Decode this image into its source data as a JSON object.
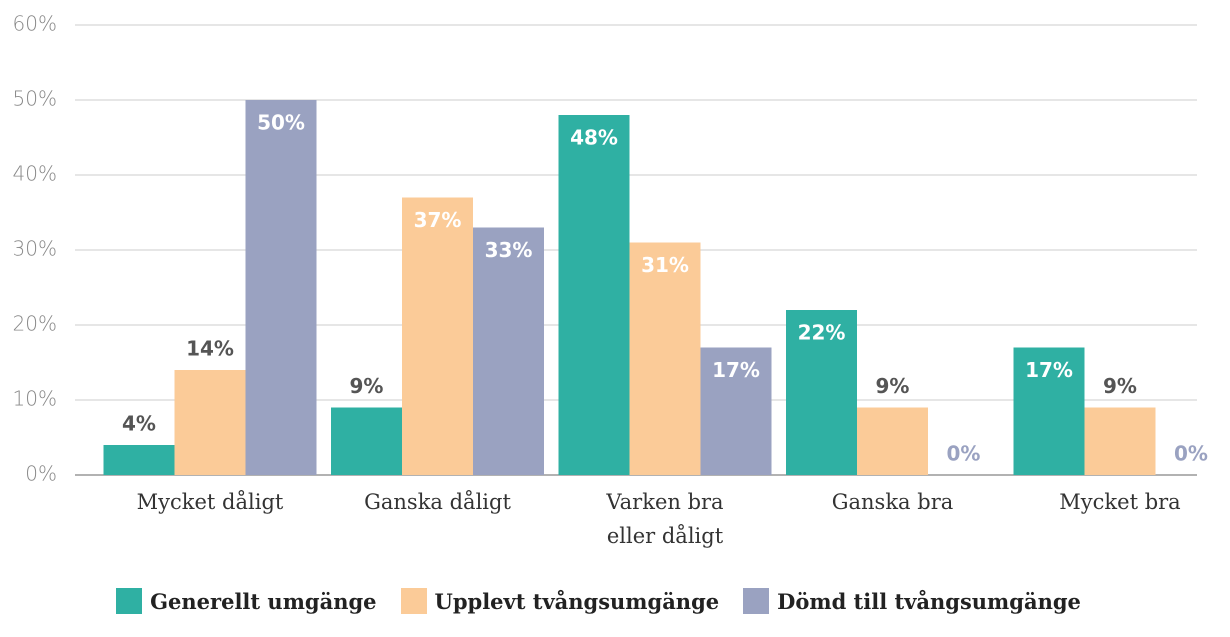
{
  "chart_data": {
    "type": "bar",
    "categories": [
      "Mycket dåligt",
      "Ganska dåligt",
      "Varken bra\neller dåligt",
      "Ganska bra",
      "Mycket bra"
    ],
    "series": [
      {
        "name": "Generellt umgänge",
        "color": "#2fb0a3",
        "values": [
          4,
          9,
          48,
          22,
          17
        ],
        "value_labels": [
          "4%",
          "9%",
          "48%",
          "22%",
          "17%"
        ]
      },
      {
        "name": "Upplevt tvångsumgänge",
        "color": "#fbcb98",
        "values": [
          14,
          37,
          31,
          9,
          9
        ],
        "value_labels": [
          "14%",
          "37%",
          "31%",
          "9%",
          "9%"
        ]
      },
      {
        "name": "Dömd till tvångsumgänge",
        "color": "#9aa2c1",
        "values": [
          50,
          33,
          17,
          0,
          0
        ],
        "value_labels": [
          "50%",
          "33%",
          "17%",
          "0%",
          "0%"
        ]
      }
    ],
    "ylim": [
      0,
      60
    ],
    "yticks": [
      {
        "value": 0,
        "label": "0%"
      },
      {
        "value": 10,
        "label": "10%"
      },
      {
        "value": 20,
        "label": "20%"
      },
      {
        "value": 30,
        "label": "30%"
      },
      {
        "value": 40,
        "label": "40%"
      },
      {
        "value": 50,
        "label": "50%"
      },
      {
        "value": 60,
        "label": "60%"
      }
    ],
    "grid": true
  }
}
